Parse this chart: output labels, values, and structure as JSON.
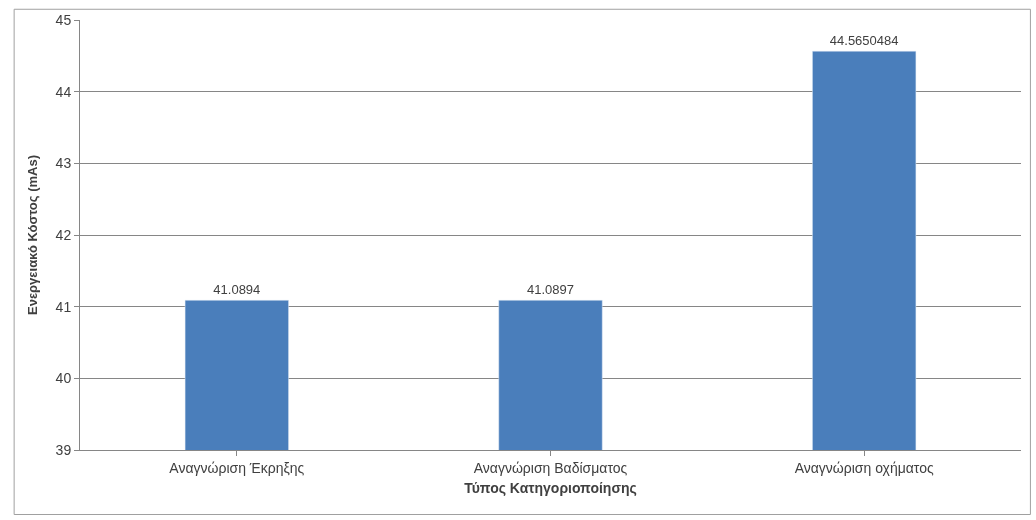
{
  "chart_data": {
    "type": "bar",
    "xlabel": "Τύπος Κατηγοριοποίησης",
    "ylabel": "Ενεργειακό Κόστος (mAs)",
    "categories": [
      "Αναγνώριση Έκρηξης",
      "Αναγνώριση Βαδίσματος",
      "Αναγνώριση οχήματος"
    ],
    "values": [
      41.0894,
      41.0897,
      44.5650484
    ],
    "color": "#4a7ebb",
    "ylim": [
      39,
      45
    ],
    "yticks": [
      39,
      40,
      41,
      42,
      43,
      44,
      45
    ],
    "grid": "y",
    "data_labels": true,
    "legend": false
  }
}
